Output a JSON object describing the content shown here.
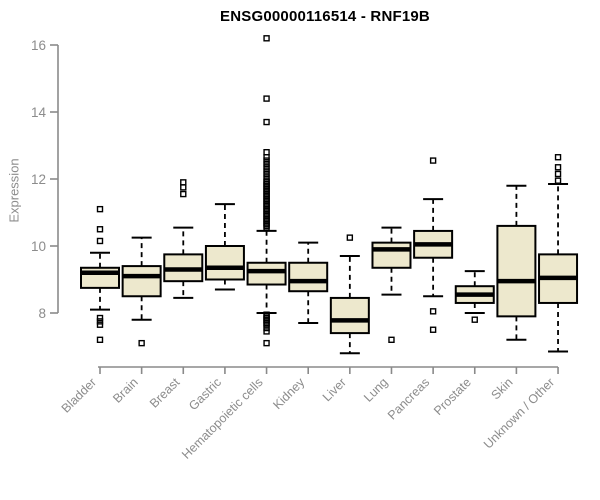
{
  "chart_data": {
    "type": "boxplot",
    "title": "ENSG00000116514 - RNF19B",
    "ylabel": "Expression",
    "xlabel": "",
    "yticks": [
      8,
      10,
      12,
      14,
      16
    ],
    "ylim": [
      6.4,
      16.4
    ],
    "grid": false,
    "legend": "none",
    "colors": {
      "box_fill": "#ede8cd",
      "box_stroke": "#000000",
      "median": "#000000",
      "axis": "#8a8a8a",
      "tick_text": "#8c8c8c",
      "title_text": "#000000",
      "background": "#ffffff"
    },
    "series": [
      {
        "label": "Bladder",
        "low": 8.1,
        "q1": 8.75,
        "median": 9.2,
        "q3": 9.35,
        "high": 9.8,
        "outliers": [
          11.1,
          10.5,
          10.15,
          7.85,
          7.75,
          7.65,
          7.2
        ]
      },
      {
        "label": "Brain",
        "low": 7.8,
        "q1": 8.5,
        "median": 9.1,
        "q3": 9.4,
        "high": 10.25,
        "outliers": [
          7.1
        ]
      },
      {
        "label": "Breast",
        "low": 8.45,
        "q1": 8.95,
        "median": 9.3,
        "q3": 9.75,
        "high": 10.55,
        "outliers": [
          11.9,
          11.75,
          11.55
        ]
      },
      {
        "label": "Gastric",
        "low": 8.7,
        "q1": 9.0,
        "median": 9.35,
        "q3": 10.0,
        "high": 11.25,
        "outliers": []
      },
      {
        "label": "Hematopoietic cells",
        "low": 8.0,
        "q1": 8.85,
        "median": 9.25,
        "q3": 9.5,
        "high": 10.45,
        "outliers": [
          16.2,
          14.4,
          13.7,
          12.8,
          12.65,
          12.55,
          12.45,
          12.35,
          12.25,
          12.15,
          12.05,
          11.95,
          11.9,
          11.85,
          11.8,
          11.75,
          11.7,
          11.65,
          11.6,
          11.55,
          11.5,
          11.45,
          11.4,
          11.35,
          11.3,
          11.25,
          11.2,
          11.15,
          11.1,
          11.05,
          11.0,
          10.95,
          10.9,
          10.85,
          10.8,
          10.75,
          10.7,
          10.65,
          10.6,
          10.55,
          7.95,
          7.9,
          7.85,
          7.8,
          7.75,
          7.7,
          7.65,
          7.55,
          7.45,
          7.1
        ]
      },
      {
        "label": "Kidney",
        "low": 7.7,
        "q1": 8.65,
        "median": 8.95,
        "q3": 9.5,
        "high": 10.1,
        "outliers": []
      },
      {
        "label": "Liver",
        "low": 6.8,
        "q1": 7.4,
        "median": 7.78,
        "q3": 8.45,
        "high": 9.7,
        "outliers": [
          10.25
        ]
      },
      {
        "label": "Lung",
        "low": 8.55,
        "q1": 9.35,
        "median": 9.9,
        "q3": 10.1,
        "high": 10.55,
        "outliers": [
          7.2
        ]
      },
      {
        "label": "Pancreas",
        "low": 8.5,
        "q1": 9.65,
        "median": 10.05,
        "q3": 10.45,
        "high": 11.4,
        "outliers": [
          12.55,
          8.05,
          7.5
        ]
      },
      {
        "label": "Prostate",
        "low": 8.0,
        "q1": 8.3,
        "median": 8.55,
        "q3": 8.8,
        "high": 9.25,
        "outliers": [
          7.8
        ]
      },
      {
        "label": "Skin",
        "low": 7.2,
        "q1": 7.9,
        "median": 8.95,
        "q3": 10.6,
        "high": 11.8,
        "outliers": []
      },
      {
        "label": "Unknown / Other",
        "low": 6.85,
        "q1": 8.3,
        "median": 9.05,
        "q3": 9.75,
        "high": 11.85,
        "outliers": [
          12.65,
          12.35,
          12.15,
          11.95
        ]
      }
    ]
  }
}
